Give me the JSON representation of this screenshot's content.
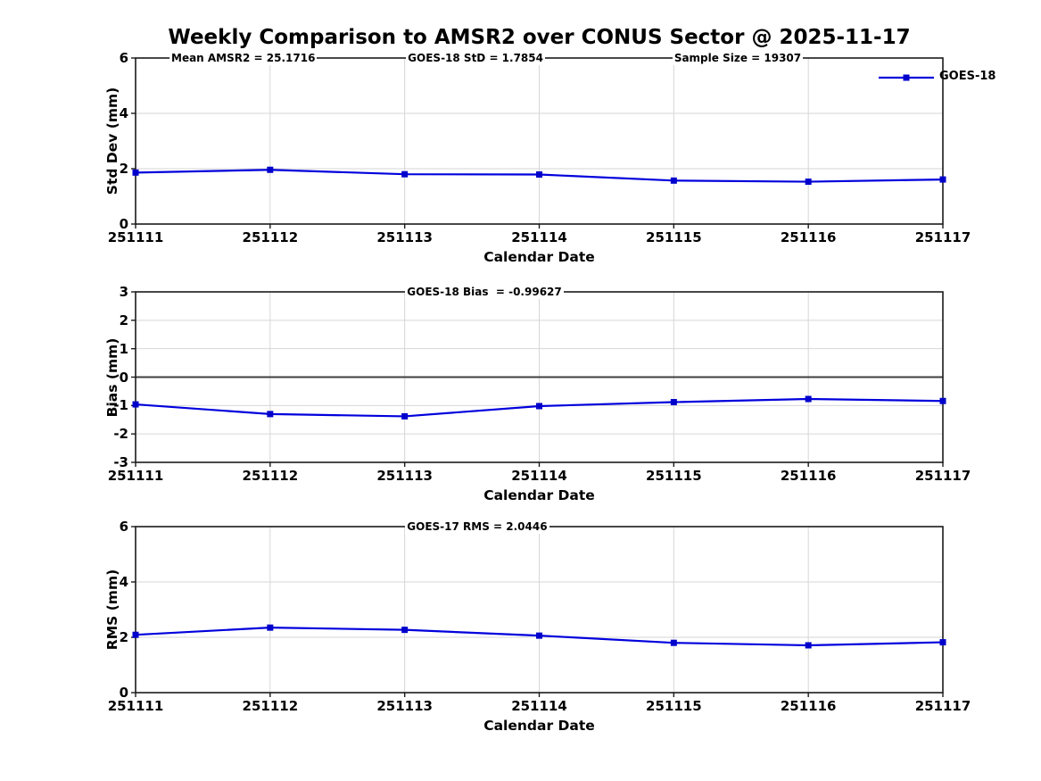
{
  "header": {
    "title": "Weekly Comparison to AMSR2 over CONUS Sector @ 2025-11-17"
  },
  "colors": {
    "line": "#0000dd",
    "marker": "#0000cc",
    "grid": "#d6d6d6",
    "axis": "#1a1a1a",
    "zero_line": "#3f3f3f",
    "text": "#000000"
  },
  "chart_data": [
    {
      "type": "line",
      "categories": [
        "251111",
        "251112",
        "251113",
        "251114",
        "251115",
        "251116",
        "251117"
      ],
      "series": [
        {
          "name": "GOES-18",
          "values": [
            1.86,
            1.96,
            1.8,
            1.79,
            1.57,
            1.53,
            1.61
          ]
        }
      ],
      "xlabel": "Calendar Date",
      "ylabel": "Std Dev (mm)",
      "ylim": [
        0,
        6
      ],
      "yticks": [
        0,
        2,
        4,
        6
      ],
      "grid": true,
      "legend": {
        "label": "GOES-18",
        "position": "top-right"
      },
      "annotations": [
        "Mean AMSR2 = 25.1716",
        "GOES-18 StD = 1.7854",
        "Sample Size = 19307"
      ]
    },
    {
      "type": "line",
      "categories": [
        "251111",
        "251112",
        "251113",
        "251114",
        "251115",
        "251116",
        "251117"
      ],
      "series": [
        {
          "name": "GOES-18",
          "values": [
            -0.96,
            -1.3,
            -1.38,
            -1.02,
            -0.88,
            -0.77,
            -0.84
          ]
        }
      ],
      "xlabel": "Calendar Date",
      "ylabel": "Bias (mm)",
      "ylim": [
        -3,
        3
      ],
      "yticks": [
        -3,
        -2,
        -1,
        0,
        1,
        2,
        3
      ],
      "grid": true,
      "zero_line": true,
      "annotations": [
        "GOES-18 Bias  = -0.99627"
      ]
    },
    {
      "type": "line",
      "categories": [
        "251111",
        "251112",
        "251113",
        "251114",
        "251115",
        "251116",
        "251117"
      ],
      "series": [
        {
          "name": "GOES-18",
          "values": [
            2.09,
            2.35,
            2.27,
            2.06,
            1.8,
            1.71,
            1.82
          ]
        }
      ],
      "xlabel": "Calendar Date",
      "ylabel": "RMS (mm)",
      "ylim": [
        0,
        6
      ],
      "yticks": [
        0,
        2,
        4,
        6
      ],
      "grid": true,
      "annotations": [
        "GOES-17 RMS = 2.0446"
      ]
    }
  ]
}
